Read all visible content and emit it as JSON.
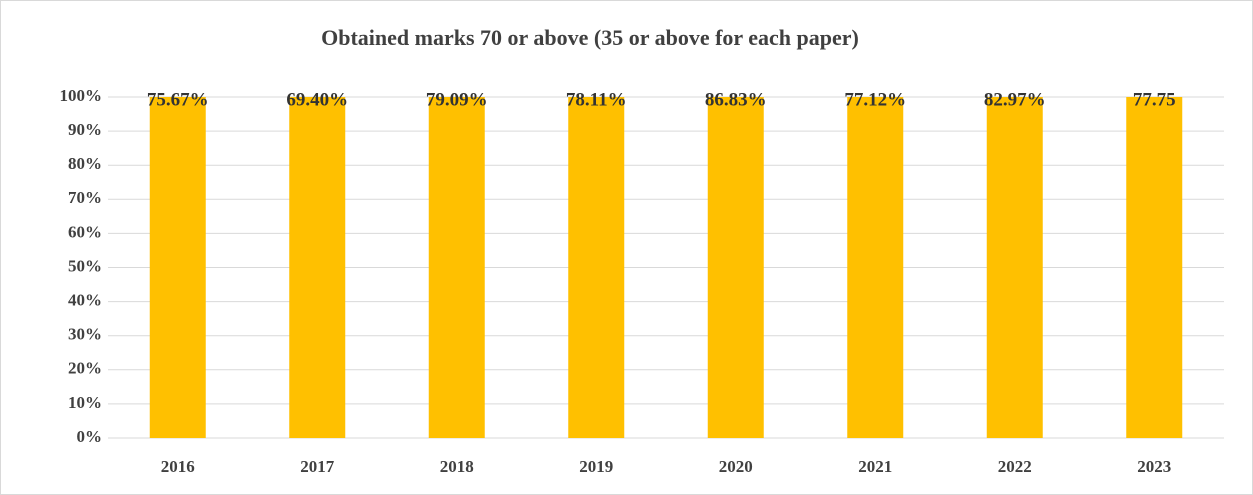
{
  "chart_data": {
    "type": "bar",
    "stacked": "percent",
    "title": "Obtained marks 70 or above (35 or above for each paper)",
    "categories": [
      "2016",
      "2017",
      "2018",
      "2019",
      "2020",
      "2021",
      "2022",
      "2023"
    ],
    "values": [
      75.67,
      69.4,
      79.09,
      78.11,
      86.83,
      77.12,
      82.97,
      77.75
    ],
    "value_labels": [
      "75.67%",
      "69.40%",
      "79.09%",
      "78.11%",
      "86.83%",
      "77.12%",
      "82.97%",
      "77.75"
    ],
    "color": "#ffc000",
    "ylim": [
      0,
      100
    ],
    "yticks": [
      {
        "value": 0,
        "label": "0%"
      },
      {
        "value": 10,
        "label": "10%"
      },
      {
        "value": 20,
        "label": "20%"
      },
      {
        "value": 30,
        "label": "30%"
      },
      {
        "value": 40,
        "label": "40%"
      },
      {
        "value": 50,
        "label": "50%"
      },
      {
        "value": 60,
        "label": "60%"
      },
      {
        "value": 70,
        "label": "70%"
      },
      {
        "value": 80,
        "label": "80%"
      },
      {
        "value": 90,
        "label": "90%"
      },
      {
        "value": 100,
        "label": "100%"
      }
    ],
    "grid": true
  }
}
